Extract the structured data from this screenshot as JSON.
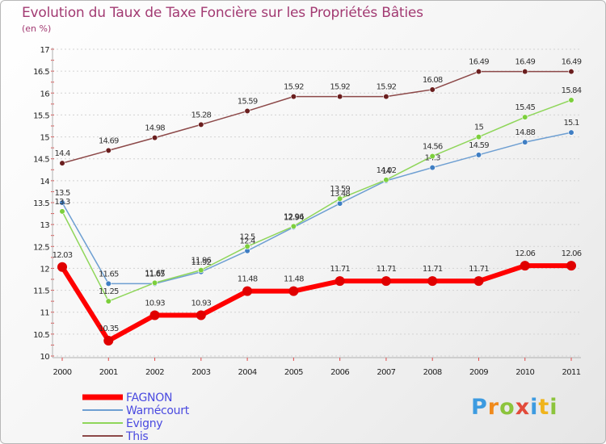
{
  "chart_data": {
    "type": "line",
    "title": "Evolution du Taux de Taxe Foncière sur les Propriétés Bâties",
    "ylabel": "(en %)",
    "xlabel": "",
    "x": [
      2000,
      2001,
      2002,
      2003,
      2004,
      2005,
      2006,
      2007,
      2008,
      2009,
      2010,
      2011
    ],
    "ylim": [
      10,
      17
    ],
    "yticks": [
      10,
      10.5,
      11,
      11.5,
      12,
      12.5,
      13,
      13.5,
      14,
      14.5,
      15,
      15.5,
      16,
      16.5,
      17
    ],
    "grid": "horizontal",
    "series": [
      {
        "name": "FAGNON",
        "values": [
          12.03,
          10.35,
          10.93,
          10.93,
          11.48,
          11.48,
          11.71,
          11.71,
          11.71,
          11.71,
          12.06,
          12.06
        ],
        "labels": [
          "12.03",
          "10.35",
          "10.93",
          "10.93",
          "11.48",
          "11.48",
          "11.71",
          "11.71",
          "11.71",
          "11.71",
          "12.06",
          "12.06"
        ],
        "color": "#ff0000",
        "marker": "#e00000",
        "width": 6
      },
      {
        "name": "Warnécourt",
        "values": [
          13.5,
          11.65,
          11.65,
          11.92,
          12.4,
          12.94,
          13.48,
          14.0,
          14.3,
          14.59,
          14.88,
          15.1
        ],
        "labels": [
          "13.5",
          "11.65",
          "11.65",
          "11.92",
          "12.4",
          "12.94",
          "13.48",
          "14",
          "14.3",
          "14.59",
          "14.88",
          "15.1"
        ],
        "color": "#6e9fd2",
        "marker": "#3f7ec3",
        "width": 1.5
      },
      {
        "name": "Evigny",
        "values": [
          13.3,
          11.25,
          11.67,
          11.96,
          12.5,
          12.96,
          13.59,
          14.02,
          14.56,
          15.0,
          15.45,
          15.84
        ],
        "labels": [
          "13.3",
          "11.25",
          "11.67",
          "11.96",
          "12.5",
          "12.96",
          "13.59",
          "14.02",
          "14.56",
          "15",
          "15.45",
          "15.84"
        ],
        "color": "#8fd65a",
        "marker": "#7ccf3c",
        "width": 1.5
      },
      {
        "name": "This",
        "values": [
          14.4,
          14.69,
          14.98,
          15.28,
          15.59,
          15.92,
          15.92,
          15.92,
          16.08,
          16.49,
          16.49,
          16.49
        ],
        "labels": [
          "14.4",
          "14.69",
          "14.98",
          "15.28",
          "15.59",
          "15.92",
          "15.92",
          "15.92",
          "16.08",
          "16.49",
          "16.49",
          "16.49"
        ],
        "color": "#8c4848",
        "marker": "#6a1e1e",
        "width": 1.5
      }
    ]
  },
  "logo": {
    "letters": [
      "P",
      "r",
      "o",
      "x",
      "i",
      "t",
      "i"
    ]
  }
}
